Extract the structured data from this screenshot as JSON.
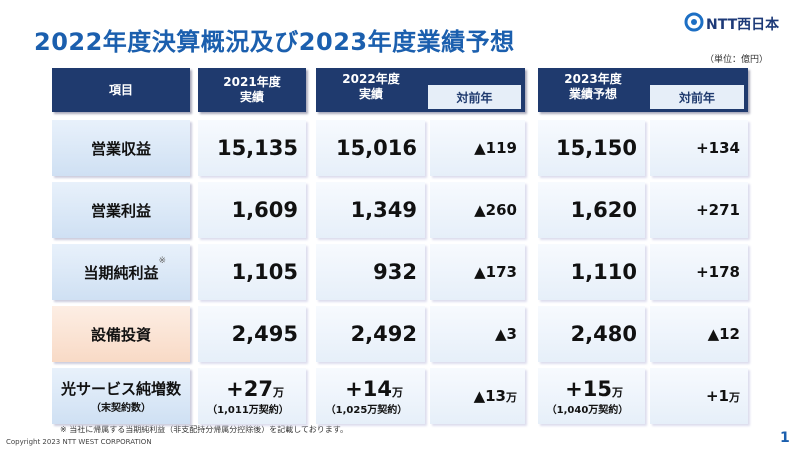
{
  "header": {
    "title": "2022年度決算概況及び2023年度業績予想",
    "logo": "NTT西日本",
    "unit": "（単位：億円）"
  },
  "table": {
    "columns": [
      "項目",
      "2021年度\n実績",
      "2022年度\n実績",
      "対前年",
      "2023年度\n業績予想",
      "対前年"
    ],
    "rows": [
      {
        "label": "営業収益",
        "cells": [
          "15,135",
          "15,016",
          "▲119",
          "15,150",
          "+134"
        ]
      },
      {
        "label": "営業利益",
        "cells": [
          "1,609",
          "1,349",
          "▲260",
          "1,620",
          "+271"
        ]
      },
      {
        "label": "当期純利益",
        "mark": "※",
        "cells": [
          "1,105",
          "932",
          "▲173",
          "1,110",
          "+178"
        ]
      },
      {
        "label": "設備投資",
        "cells": [
          "2,495",
          "2,492",
          "▲3",
          "2,480",
          "▲12"
        ]
      },
      {
        "label": "光サービス純増数",
        "sublabel": "（末契約数）",
        "cells": [
          {
            "value": "+27",
            "unit": "万",
            "note": "（1,011万契約）"
          },
          {
            "value": "+14",
            "unit": "万",
            "note": "（1,025万契約）"
          },
          {
            "value": "▲13",
            "unit": "万"
          },
          {
            "value": "+15",
            "unit": "万",
            "note": "（1,040万契約）"
          },
          {
            "value": "+1",
            "unit": "万"
          }
        ]
      }
    ]
  },
  "footnote": "※ 当社に帰属する当期純利益（非支配持分帰属分控除後）を記載しております。",
  "copyright": "Copyright 2023 NTT WEST CORPORATION",
  "page": "1"
}
